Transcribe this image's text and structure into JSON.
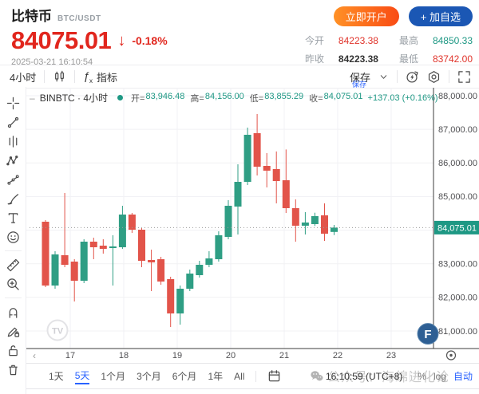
{
  "header": {
    "symbol_name": "比特币",
    "symbol_code": "BTC/USDT",
    "price": "84075.01",
    "down_arrow": "↓",
    "change_percent": "-0.18%",
    "timestamp": "2025-03-21 16:10:54",
    "open_account_label": "立即开户",
    "add_watchlist_label": "+ 加自选",
    "stats": [
      {
        "label": "今开",
        "value": "84223.38",
        "color": "#e0342b"
      },
      {
        "label": "最高",
        "value": "84850.33",
        "color": "#1e9884"
      },
      {
        "label": "昨收",
        "value": "84223.38",
        "color": "#333333",
        "bold": true
      },
      {
        "label": "最低",
        "value": "83742.00",
        "color": "#e0342b"
      }
    ]
  },
  "toolbar": {
    "interval_label": "4小时",
    "fx": "ƒ",
    "fx_sub": "x",
    "indicators_label": "指标",
    "save_label": "保存",
    "save_tooltip": "保存"
  },
  "sidebar": {
    "tools": [
      {
        "name": "crosshair"
      },
      {
        "name": "trend-line"
      },
      {
        "name": "gann-fib"
      },
      {
        "name": "xabcd-pattern"
      },
      {
        "name": "prediction"
      },
      {
        "name": "brush"
      },
      {
        "name": "text-tool"
      },
      {
        "name": "emoji"
      },
      {
        "sep": true
      },
      {
        "name": "ruler"
      },
      {
        "name": "zoom-in"
      },
      {
        "sep": true
      },
      {
        "name": "magnet"
      },
      {
        "name": "draw-lock"
      },
      {
        "name": "lock"
      },
      {
        "name": "trash"
      }
    ]
  },
  "legend": {
    "collapse_glyph": "–",
    "series_title": "BINBTC · 4小时",
    "items": [
      {
        "label": "开",
        "value": "83,946.48"
      },
      {
        "label": "高",
        "value": "84,156.00"
      },
      {
        "label": "低",
        "value": "83,855.29"
      },
      {
        "label": "收",
        "value": "84,075.01"
      }
    ],
    "change": "+137.03 (+0.16%)"
  },
  "chart_data": {
    "type": "candlestick",
    "symbol": "BINBTC",
    "interval": "4小时",
    "title": "比特币 BTC/USDT 4小时K线",
    "visible_price_range": [
      80478,
      88237
    ],
    "y_ticks": [
      88000,
      87000,
      86000,
      85000,
      84000,
      83000,
      82000,
      81000
    ],
    "x_labels": [
      "17",
      "18",
      "19",
      "20",
      "21",
      "22",
      "23"
    ],
    "current_price": 84075.01,
    "current_price_label": "84,075.01",
    "last_bar": {
      "open": 83946.48,
      "high": 84156.0,
      "low": 83855.29,
      "close": 84075.01,
      "change": "+137.03 (+0.16%)"
    },
    "up_color": "#2f9e84",
    "down_color": "#e2544a",
    "candles": [
      [
        84251,
        84299,
        82305,
        82353
      ],
      [
        82353,
        83373,
        82258,
        83278
      ],
      [
        83254,
        85105,
        82898,
        82969
      ],
      [
        83064,
        83135,
        81878,
        82495
      ],
      [
        82495,
        83729,
        82424,
        83658
      ],
      [
        83658,
        83776,
        83135,
        83491
      ],
      [
        83539,
        83729,
        83302,
        83444
      ],
      [
        83468,
        83847,
        82353,
        83515
      ],
      [
        83491,
        84725,
        83444,
        84464
      ],
      [
        84464,
        84512,
        83918,
        84013
      ],
      [
        84013,
        84061,
        82898,
        83088
      ],
      [
        83112,
        83420,
        82187,
        83041
      ],
      [
        83135,
        83207,
        82377,
        82471
      ],
      [
        82542,
        82613,
        81119,
        81522
      ],
      [
        81522,
        82353,
        81190,
        82258
      ],
      [
        82258,
        82827,
        82187,
        82709
      ],
      [
        82661,
        83088,
        82590,
        82969
      ],
      [
        82969,
        83373,
        82898,
        83159
      ],
      [
        83135,
        83966,
        83064,
        83847
      ],
      [
        83800,
        84891,
        83729,
        84725
      ],
      [
        84701,
        85959,
        83870,
        85437
      ],
      [
        85437,
        87051,
        85342,
        86837
      ],
      [
        86885,
        87454,
        85627,
        85888
      ],
      [
        85912,
        86292,
        85271,
        85769
      ],
      [
        85817,
        86340,
        84796,
        85461
      ],
      [
        85485,
        86400,
        84512,
        84654
      ],
      [
        84654,
        84915,
        83658,
        84132
      ],
      [
        84132,
        84535,
        83871,
        84227
      ],
      [
        84180,
        84519,
        84124,
        84417
      ],
      [
        84440,
        84796,
        83681,
        83895
      ],
      [
        83946.48,
        84156.0,
        83855.29,
        84075.01
      ]
    ],
    "logos": {
      "tv": "TV",
      "broker": "F"
    }
  },
  "bottom_bar": {
    "ranges": [
      {
        "label": "1天"
      },
      {
        "label": "5天",
        "active": true
      },
      {
        "label": "1个月"
      },
      {
        "label": "3个月"
      },
      {
        "label": "6个月"
      },
      {
        "label": "1年"
      },
      {
        "label": "All"
      }
    ],
    "clock": "16:10:59 (UTC+8)",
    "percent_label": "%",
    "log_label": "log",
    "auto_label": "自动"
  },
  "watermark": {
    "text": "公众号：海绵进化论"
  }
}
